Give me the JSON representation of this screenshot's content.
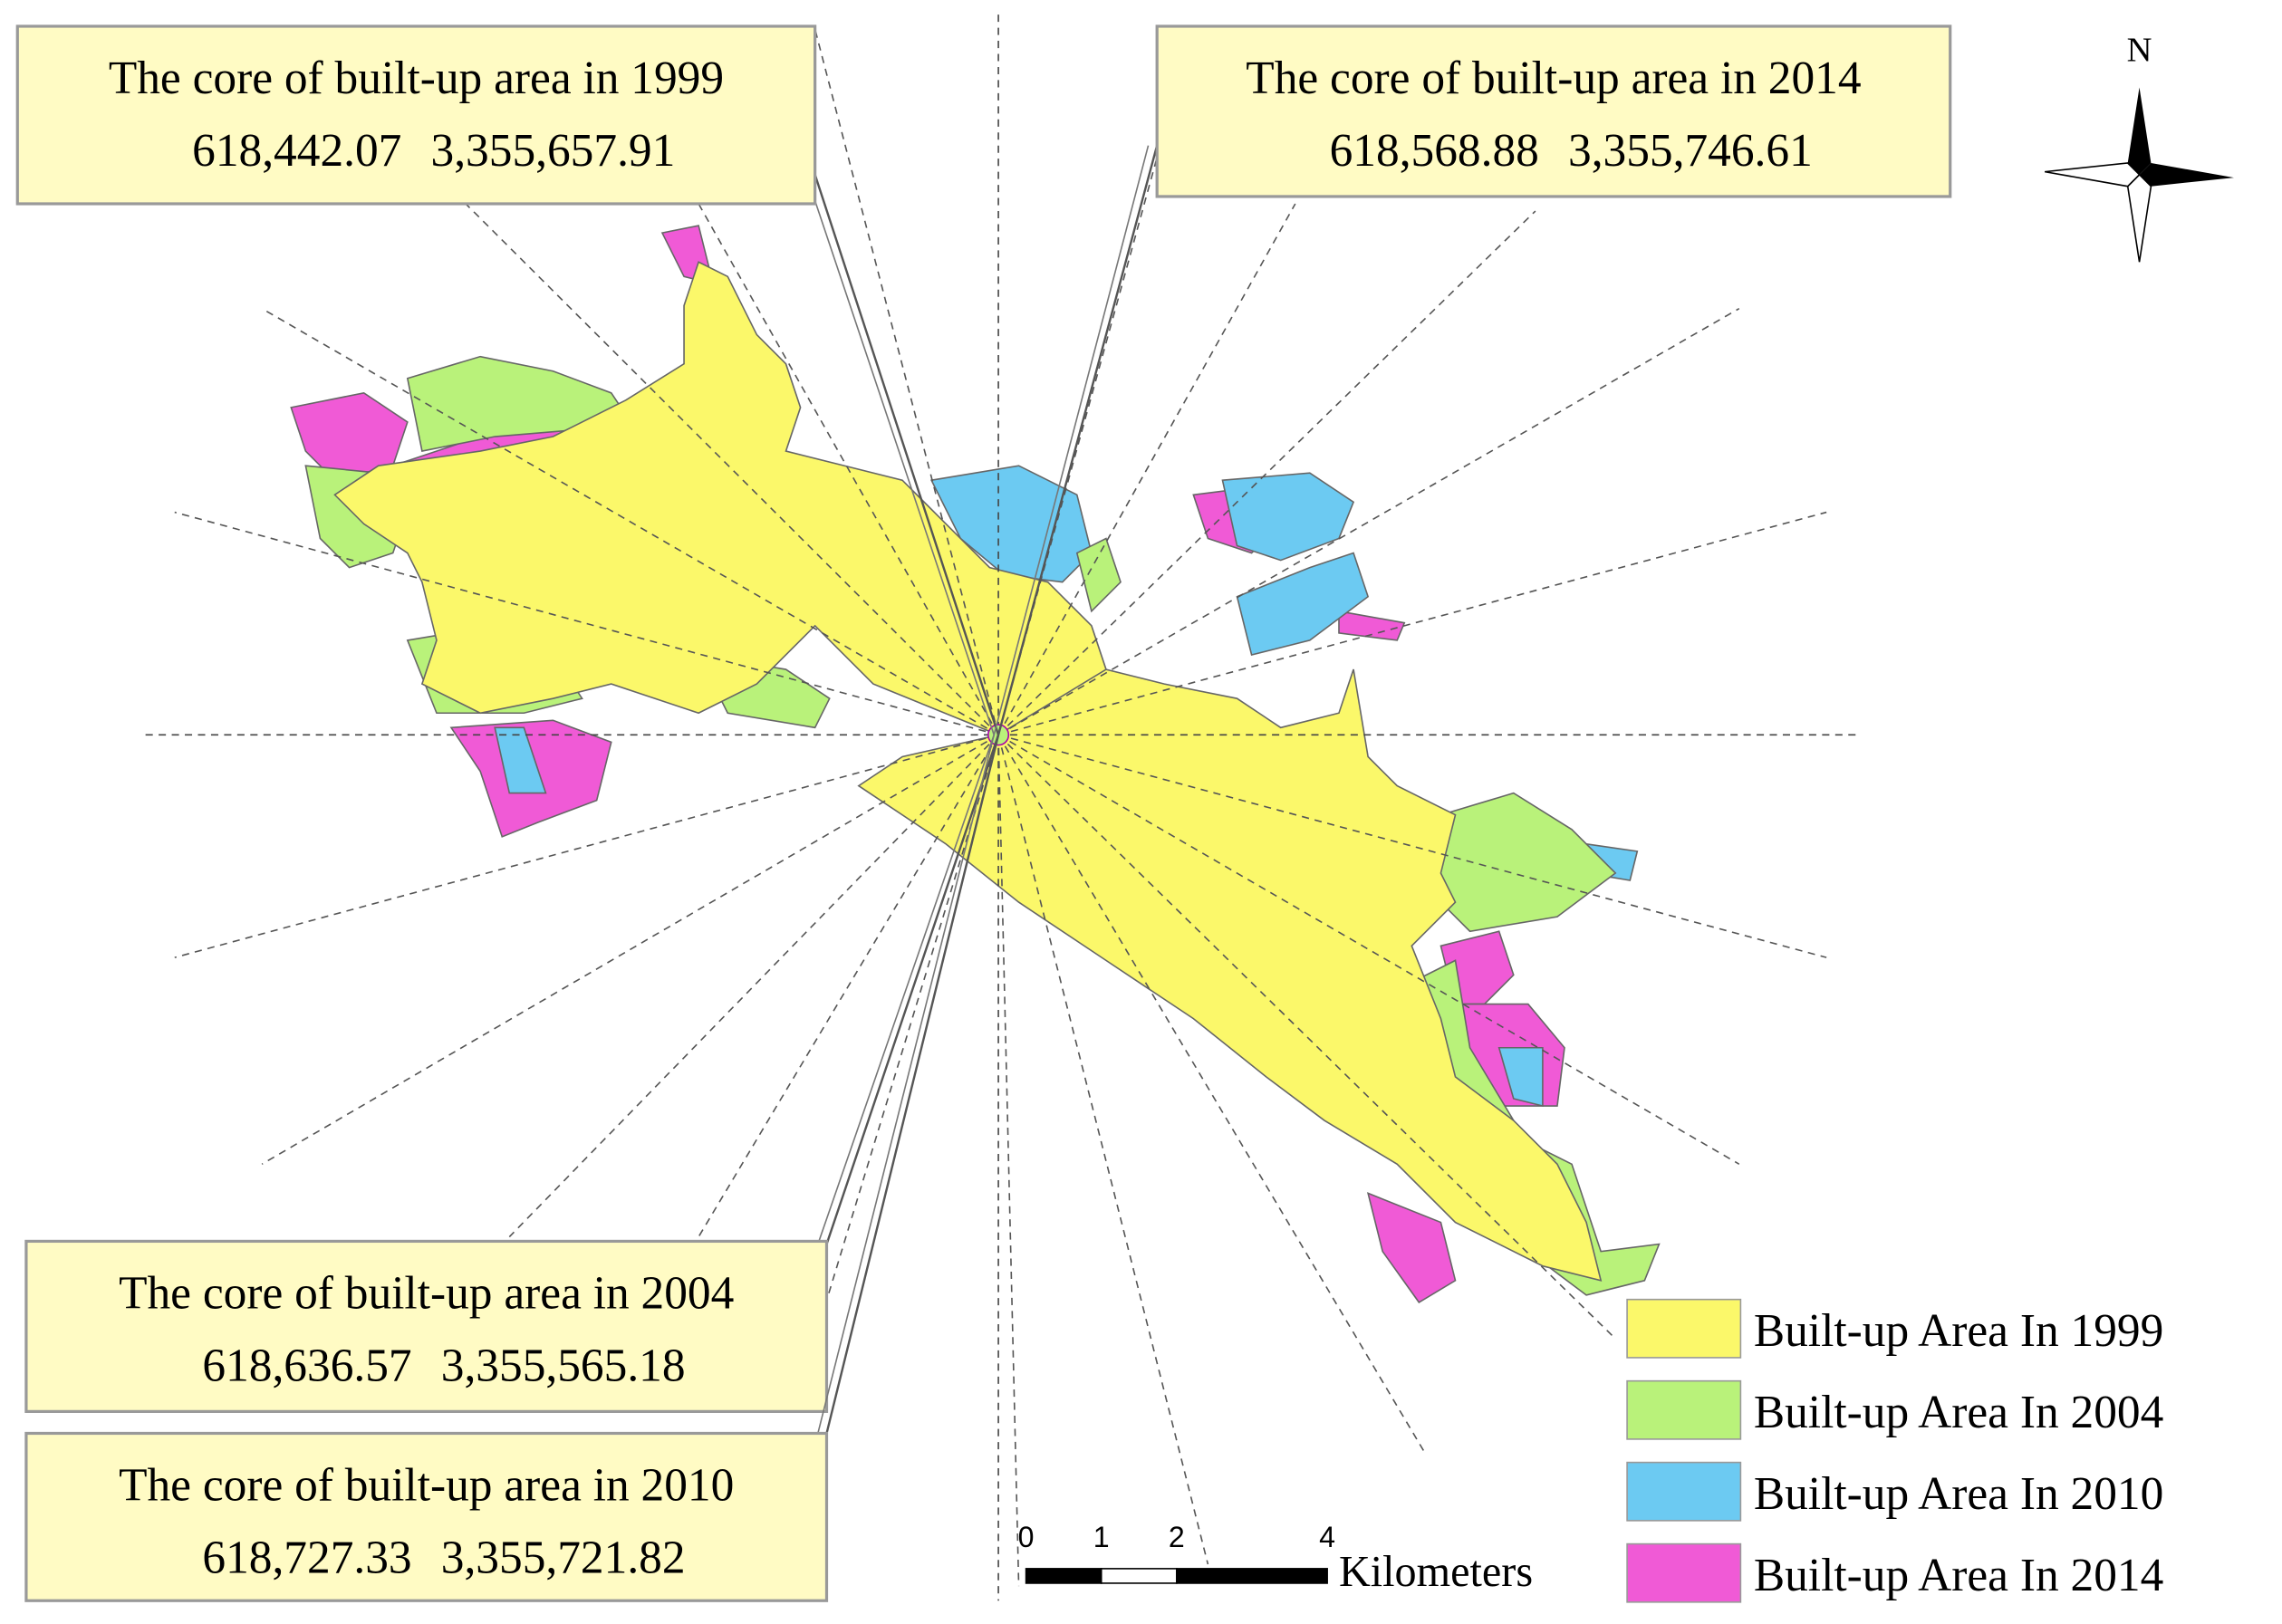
{
  "north_label": "N",
  "callouts": [
    {
      "title": "The core of built-up area in 1999",
      "x": "618,442.07",
      "y": "3,355,657.91"
    },
    {
      "title": "The core of built-up area in 2014",
      "x": "618,568.88",
      "y": "3,355,746.61"
    },
    {
      "title": "The core of built-up area in 2004",
      "x": "618,636.57",
      "y": "3,355,565.18"
    },
    {
      "title": "The core of built-up area in 2010",
      "x": "618,727.33",
      "y": "3,355,721.82"
    }
  ],
  "legend": [
    {
      "label": "Built-up Area In 1999",
      "color": "#fbf86a"
    },
    {
      "label": "Built-up Area In 2004",
      "color": "#b9f27a"
    },
    {
      "label": "Built-up Area In 2010",
      "color": "#6ccaf2"
    },
    {
      "label": "Built-up Area In 2014",
      "color": "#f05ad6"
    }
  ],
  "scale_bar": {
    "ticks": [
      0,
      1,
      2,
      4
    ],
    "unit": "Kilometers"
  }
}
